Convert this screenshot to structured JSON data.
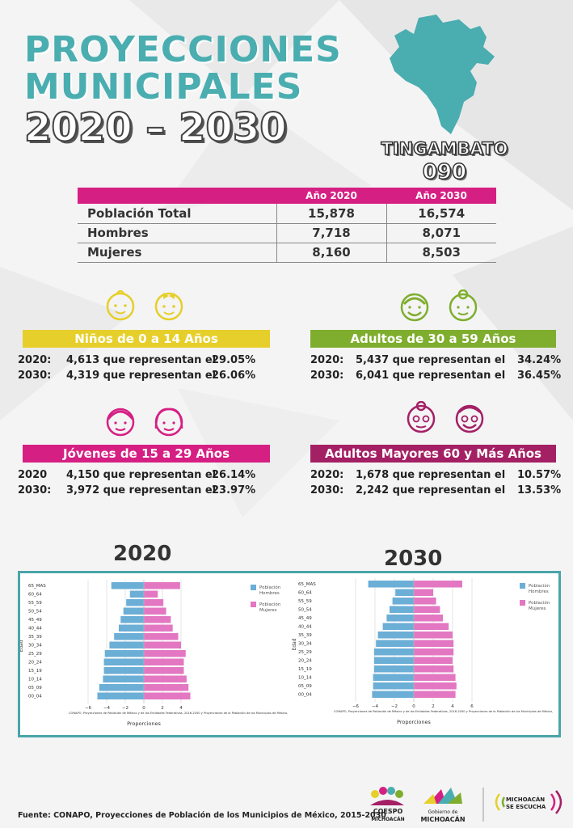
{
  "header": {
    "line1": "PROYECCIONES",
    "line2": "MUNICIPALES",
    "line3": "2020 – 2030"
  },
  "municipio": {
    "name": "TINGAMBATO",
    "code": "090"
  },
  "table": {
    "headers": [
      "Año 2020",
      "Año 2030"
    ],
    "rows": [
      {
        "label": "Población Total",
        "v2020": "15,878",
        "v2030": "16,574"
      },
      {
        "label": "Hombres",
        "v2020": "7,718",
        "v2030": "8,071"
      },
      {
        "label": "Mujeres",
        "v2020": "8,160",
        "v2030": "8,503"
      }
    ]
  },
  "groups": {
    "ninos": {
      "title": "Niños de 0 a 14 Años",
      "color": "#e6cf2a",
      "rows": [
        {
          "y": "2020:",
          "n": "4,613 que representan el",
          "p": "29.05%"
        },
        {
          "y": "2030:",
          "n": "4,319 que representan el",
          "p": "26.06%"
        }
      ]
    },
    "adultos": {
      "title": "Adultos de 30 a 59 Años",
      "color": "#7fae2e",
      "rows": [
        {
          "y": "2020:",
          "n": "5,437 que representan el",
          "p": "34.24%"
        },
        {
          "y": "2030:",
          "n": "6,041 que representan el",
          "p": "36.45%"
        }
      ]
    },
    "jovenes": {
      "title": "Jóvenes de 15 a 29 Años",
      "color": "#d61f83",
      "rows": [
        {
          "y": "2020",
          "n": "4,150 que representan el",
          "p": "26.14%"
        },
        {
          "y": "2030:",
          "n": "3,972 que representan el",
          "p": "23.97%"
        }
      ]
    },
    "mayores": {
      "title": "Adultos Mayores  60 y Más Años",
      "color": "#a42064",
      "rows": [
        {
          "y": "2020:",
          "n": "1,678 que representan el",
          "p": "10.57%"
        },
        {
          "y": "2030:",
          "n": "2,242 que representan el",
          "p": "13.53%"
        }
      ]
    }
  },
  "charts_years": [
    "2020",
    "2030"
  ],
  "source_note": "CONAPO, Proyecciones de Población de México y de las Entidades Federativas, 2016-2050 y Proyecciones de la Población de los Municipios de México,",
  "footnote": "Fuente: CONAPO, Proyecciones de Población de los Municipios de México, 2015-2030",
  "logos": {
    "coespo1": "COESPO",
    "coespo2": "MICHOACÁN",
    "gob1": "Gobierno de",
    "gob2": "MICHOACÁN",
    "slogan1": "MICHOACÁN",
    "slogan2": "SE ESCUCHA"
  },
  "colors": {
    "hombres": "#6baed6",
    "mujeres": "#e377c2",
    "teal": "#4aadb0"
  },
  "chart_data": [
    {
      "type": "bar",
      "title": "2020",
      "categories": [
        "00_04",
        "05_09",
        "10_14",
        "15_19",
        "20_24",
        "25_29",
        "30_34",
        "35_39",
        "40_44",
        "45_49",
        "50_54",
        "55_59",
        "60_64",
        "65_MAS"
      ],
      "series": [
        {
          "name": "Población Hombres",
          "values": [
            -5.0,
            -4.8,
            -4.4,
            -4.3,
            -4.3,
            -4.2,
            -3.7,
            -3.2,
            -2.7,
            -2.5,
            -2.2,
            -1.9,
            -1.5,
            -3.5
          ]
        },
        {
          "name": "Población Mujeres",
          "values": [
            5.0,
            4.8,
            4.6,
            4.3,
            4.3,
            4.5,
            4.0,
            3.7,
            3.1,
            2.9,
            2.4,
            2.1,
            1.5,
            3.9
          ]
        }
      ],
      "xlabel": "Proporciones",
      "ylabel": "Edad",
      "xlim": [
        -6,
        6
      ],
      "xticks": [
        -6,
        -4,
        -2,
        0,
        2,
        4
      ]
    },
    {
      "type": "bar",
      "title": "2030",
      "categories": [
        "00_04",
        "05_09",
        "10_14",
        "15_19",
        "20_24",
        "25_29",
        "30_34",
        "35_39",
        "40_44",
        "45_49",
        "50_54",
        "55_59",
        "60_64",
        "65_MAS"
      ],
      "series": [
        {
          "name": "Población Hombres",
          "values": [
            -4.3,
            -4.2,
            -4.2,
            -4.1,
            -4.1,
            -4.1,
            -3.9,
            -3.7,
            -3.2,
            -2.8,
            -2.5,
            -2.2,
            -1.9,
            -4.7
          ]
        },
        {
          "name": "Población Mujeres",
          "values": [
            4.3,
            4.4,
            4.3,
            4.1,
            4.0,
            4.1,
            4.1,
            4.0,
            3.6,
            3.0,
            2.7,
            2.3,
            2.0,
            5.0
          ]
        }
      ],
      "xlabel": "Proporciones",
      "ylabel": "Edad",
      "xlim": [
        -6,
        6
      ],
      "xticks": [
        -6,
        -4,
        -2,
        0,
        2,
        4,
        6
      ]
    }
  ]
}
